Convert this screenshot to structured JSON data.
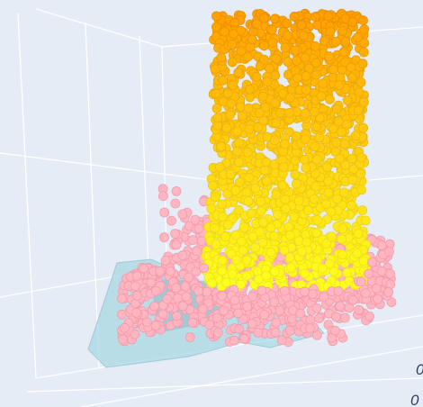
{
  "axis_tick_labels": [
    "0",
    "0"
  ]
}
